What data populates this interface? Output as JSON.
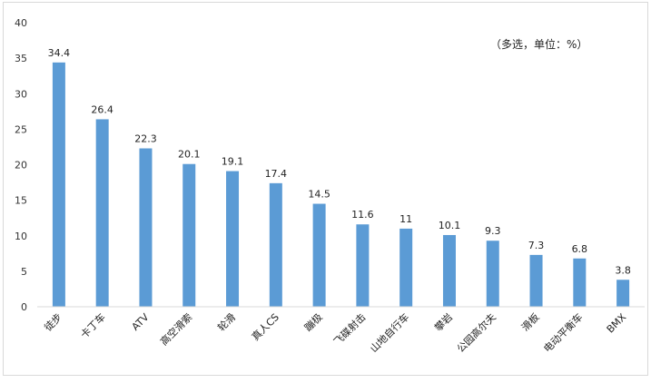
{
  "chart_data": {
    "type": "bar",
    "title": "",
    "subtitle": "",
    "xlabel": "",
    "ylabel": "",
    "annotation": "（多选，单位：%）",
    "categories": [
      "徒步",
      "卡丁车",
      "ATV",
      "高空滑索",
      "轮滑",
      "真人CS",
      "蹦极",
      "飞碟射击",
      "山地自行车",
      "攀岩",
      "公园高尔夫",
      "滑板",
      "电动平衡车",
      "BMX"
    ],
    "values": [
      34.4,
      26.4,
      22.3,
      20.1,
      19.1,
      17.4,
      14.5,
      11.6,
      11,
      10.1,
      9.3,
      7.3,
      6.8,
      3.8
    ],
    "value_labels": [
      "34.4",
      "26.4",
      "22.3",
      "20.1",
      "19.1",
      "17.4",
      "14.5",
      "11.6",
      "11",
      "10.1",
      "9.3",
      "7.3",
      "6.8",
      "3.8"
    ],
    "ylim": [
      0,
      40
    ],
    "yticks": [
      "0",
      "5",
      "10",
      "15",
      "20",
      "25",
      "30",
      "35",
      "40"
    ],
    "grid": false,
    "legend": "none",
    "bar_color": "#5b9bd5",
    "axis_color": "#d9d9d9"
  }
}
